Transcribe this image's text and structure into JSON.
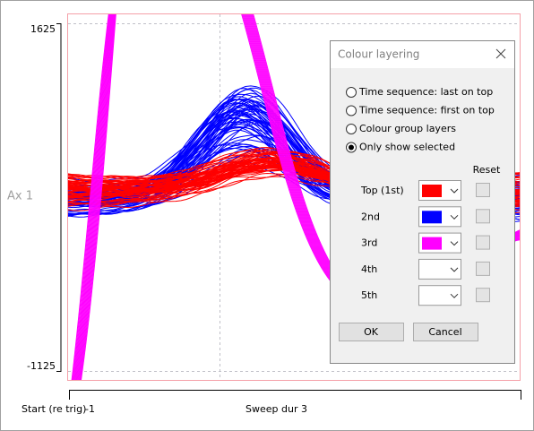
{
  "plot": {
    "y_top": "1625",
    "y_bottom": "-1125",
    "channel": "Ax 1",
    "x_start_label": "Start (re trig)",
    "x_start": "-1",
    "x_end_label": "Sweep dur",
    "x_end": "3"
  },
  "dialog": {
    "title": "Colour layering",
    "options": [
      {
        "label": "Time sequence: last on top",
        "selected": false
      },
      {
        "label": "Time sequence: first on top",
        "selected": false
      },
      {
        "label": "Colour group layers",
        "selected": false
      },
      {
        "label": "Only show selected",
        "selected": true
      }
    ],
    "reset_header": "Reset",
    "layers": [
      {
        "label": "Top (1st)",
        "color": "#ff0000"
      },
      {
        "label": "2nd",
        "color": "#0000ff"
      },
      {
        "label": "3rd",
        "color": "#ff00ff"
      },
      {
        "label": "4th"
      },
      {
        "label": "5th"
      }
    ],
    "buttons": [
      "OK",
      "Cancel"
    ]
  }
}
